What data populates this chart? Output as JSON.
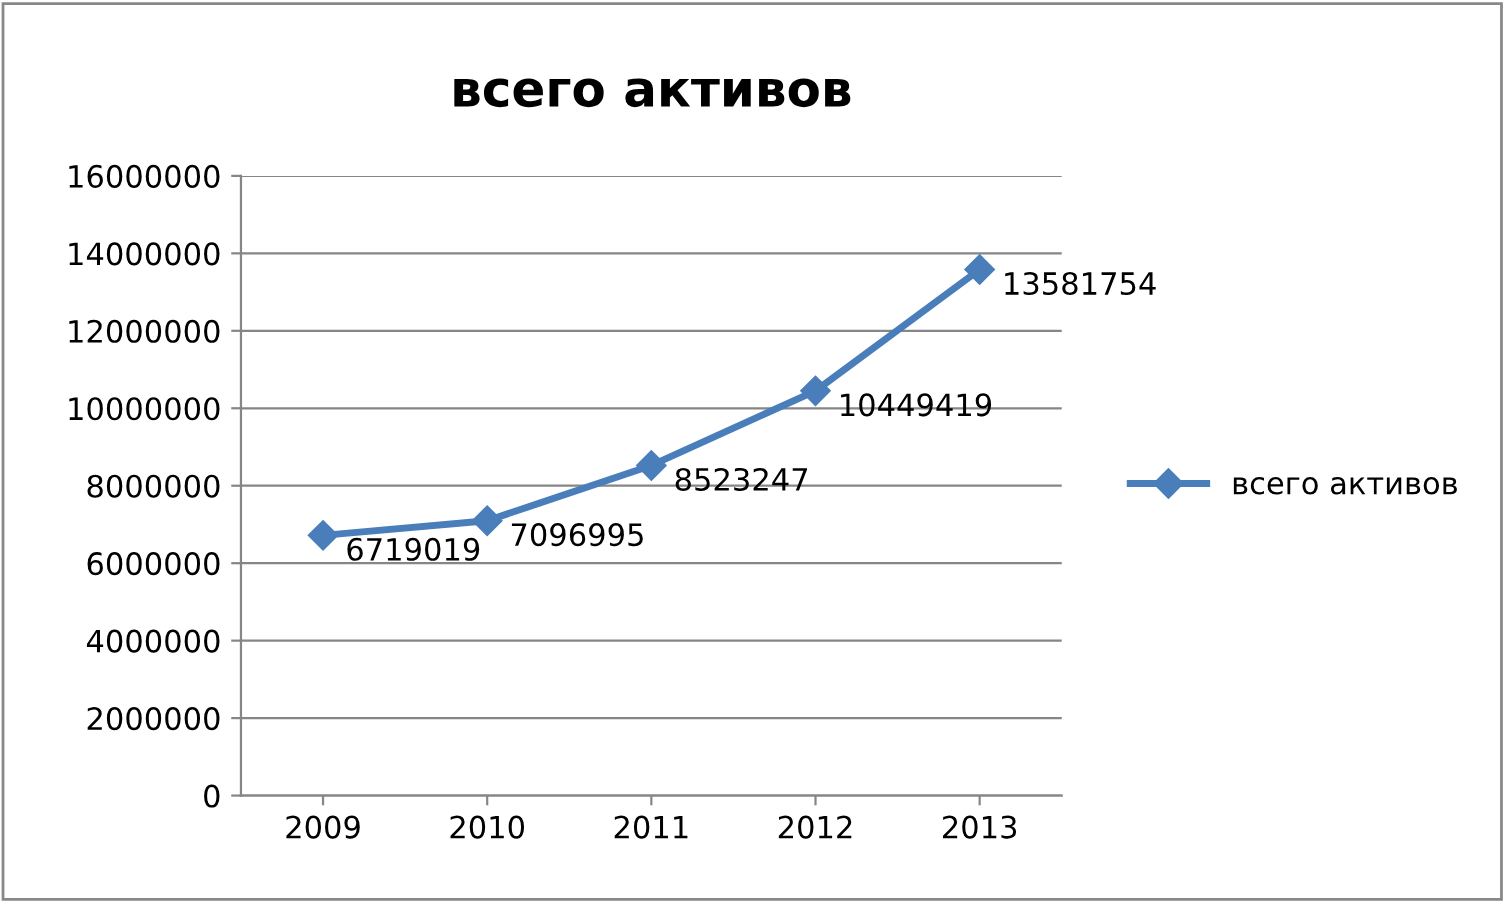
{
  "chart_data": {
    "type": "line",
    "title": "всего активов",
    "categories": [
      "2009",
      "2010",
      "2011",
      "2012",
      "2013"
    ],
    "series": [
      {
        "name": "всего активов",
        "color": "#4a7ebb",
        "values": [
          6719019,
          7096995,
          8523247,
          10449419,
          13581754
        ]
      }
    ],
    "ylim": [
      0,
      16000000
    ],
    "yticks": [
      0,
      2000000,
      4000000,
      6000000,
      8000000,
      10000000,
      12000000,
      14000000,
      16000000
    ],
    "grid": "y",
    "legend": "right",
    "marker": "diamond",
    "line_style": "solid",
    "data_labels": true
  }
}
